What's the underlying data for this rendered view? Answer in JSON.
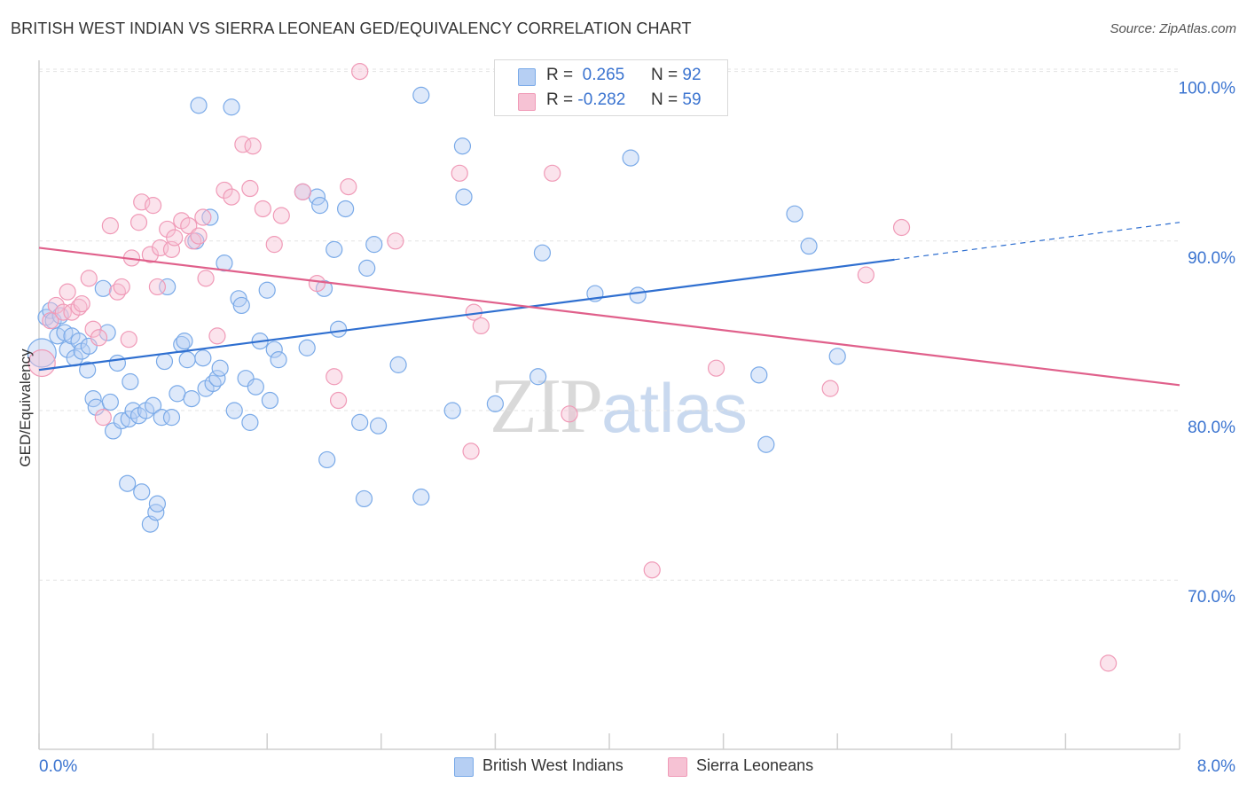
{
  "title": "BRITISH WEST INDIAN VS SIERRA LEONEAN GED/EQUIVALENCY CORRELATION CHART",
  "source": "Source: ZipAtlas.com",
  "watermark": {
    "zip": "ZIP",
    "atlas": "atlas"
  },
  "colors": {
    "blue": "#7aaae8",
    "blue_fill": "#b6cff3",
    "blue_line": "#2f6fd0",
    "pink": "#f09ab7",
    "pink_fill": "#f6c2d4",
    "pink_line": "#e0608b",
    "tick_label": "#3b74d0"
  },
  "legend": {
    "rows": [
      {
        "r_label": "R =",
        "r_value": "0.265",
        "n_label": "N =",
        "n_value": "92"
      },
      {
        "r_label": "R =",
        "r_value": "-0.282",
        "n_label": "N =",
        "n_value": "59"
      }
    ]
  },
  "bottom_legend": [
    "British West Indians",
    "Sierra Leoneans"
  ],
  "chart_data": {
    "type": "scatter",
    "title": "BRITISH WEST INDIAN VS SIERRA LEONEAN GED/EQUIVALENCY CORRELATION CHART",
    "xlabel": "",
    "ylabel": "GED/Equivalency",
    "xlim": [
      0,
      8
    ],
    "ylim": [
      60.5,
      102
    ],
    "x_tick_labels": [
      "0.0%",
      "8.0%"
    ],
    "y_ticks": [
      70,
      80,
      90,
      100
    ],
    "y_tick_labels": [
      "70.0%",
      "80.0%",
      "90.0%",
      "100.0%"
    ],
    "grid": true,
    "legend_position": "top-center",
    "series": [
      {
        "name": "British West Indians",
        "color": "#7aaae8",
        "r": 0.265,
        "n": 92,
        "trend": {
          "x": [
            0,
            6.0
          ],
          "y": [
            82.4,
            88.9
          ],
          "dashed_to": [
            8.0,
            91.1
          ]
        },
        "points": [
          [
            0.02,
            83.4
          ],
          [
            0.05,
            85.5
          ],
          [
            0.08,
            85.9
          ],
          [
            0.1,
            85.3
          ],
          [
            0.13,
            84.4
          ],
          [
            0.15,
            85.6
          ],
          [
            0.18,
            84.6
          ],
          [
            0.2,
            83.6
          ],
          [
            0.23,
            84.4
          ],
          [
            0.25,
            83.1
          ],
          [
            0.28,
            84.1
          ],
          [
            0.3,
            83.5
          ],
          [
            0.34,
            82.4
          ],
          [
            0.35,
            83.8
          ],
          [
            0.38,
            80.7
          ],
          [
            0.4,
            80.2
          ],
          [
            0.45,
            87.2
          ],
          [
            0.48,
            84.6
          ],
          [
            0.5,
            80.5
          ],
          [
            0.52,
            78.8
          ],
          [
            0.55,
            82.8
          ],
          [
            0.58,
            79.4
          ],
          [
            0.62,
            75.7
          ],
          [
            0.63,
            79.5
          ],
          [
            0.64,
            81.7
          ],
          [
            0.66,
            80.0
          ],
          [
            0.7,
            79.7
          ],
          [
            0.72,
            75.2
          ],
          [
            0.75,
            80.0
          ],
          [
            0.78,
            73.3
          ],
          [
            0.8,
            80.3
          ],
          [
            0.82,
            74.0
          ],
          [
            0.83,
            74.5
          ],
          [
            0.86,
            79.6
          ],
          [
            0.88,
            82.9
          ],
          [
            0.9,
            87.3
          ],
          [
            0.93,
            79.6
          ],
          [
            0.97,
            81.0
          ],
          [
            1.0,
            83.9
          ],
          [
            1.02,
            84.1
          ],
          [
            1.04,
            83.0
          ],
          [
            1.07,
            80.7
          ],
          [
            1.1,
            90.0
          ],
          [
            1.12,
            98.0
          ],
          [
            1.15,
            83.1
          ],
          [
            1.17,
            81.3
          ],
          [
            1.2,
            91.4
          ],
          [
            1.22,
            81.6
          ],
          [
            1.25,
            81.9
          ],
          [
            1.27,
            82.5
          ],
          [
            1.3,
            88.7
          ],
          [
            1.35,
            97.9
          ],
          [
            1.37,
            80.0
          ],
          [
            1.4,
            86.6
          ],
          [
            1.42,
            86.2
          ],
          [
            1.45,
            81.9
          ],
          [
            1.48,
            79.3
          ],
          [
            1.52,
            81.4
          ],
          [
            1.55,
            84.1
          ],
          [
            1.6,
            87.1
          ],
          [
            1.62,
            80.6
          ],
          [
            1.65,
            83.6
          ],
          [
            1.68,
            83.0
          ],
          [
            1.85,
            92.9
          ],
          [
            1.88,
            83.7
          ],
          [
            1.95,
            92.6
          ],
          [
            1.97,
            92.1
          ],
          [
            2.0,
            87.2
          ],
          [
            2.02,
            77.1
          ],
          [
            2.07,
            89.5
          ],
          [
            2.1,
            84.8
          ],
          [
            2.15,
            91.9
          ],
          [
            2.25,
            79.3
          ],
          [
            2.28,
            74.8
          ],
          [
            2.3,
            88.4
          ],
          [
            2.35,
            89.8
          ],
          [
            2.38,
            79.1
          ],
          [
            2.52,
            82.7
          ],
          [
            2.68,
            74.9
          ],
          [
            2.68,
            98.6
          ],
          [
            2.9,
            80.0
          ],
          [
            2.97,
            95.6
          ],
          [
            2.98,
            92.6
          ],
          [
            3.2,
            80.4
          ],
          [
            3.5,
            82.0
          ],
          [
            3.53,
            89.3
          ],
          [
            3.8,
            98.9
          ],
          [
            3.9,
            86.9
          ],
          [
            4.15,
            94.9
          ],
          [
            4.2,
            86.8
          ],
          [
            5.05,
            82.1
          ],
          [
            5.1,
            78.0
          ],
          [
            5.3,
            91.6
          ],
          [
            5.4,
            89.7
          ],
          [
            5.6,
            83.2
          ]
        ]
      },
      {
        "name": "Sierra Leoneans",
        "color": "#f09ab7",
        "r": -0.282,
        "n": 59,
        "trend": {
          "x": [
            0,
            8.0
          ],
          "y": [
            89.6,
            81.5
          ]
        },
        "points": [
          [
            0.02,
            82.8
          ],
          [
            0.08,
            85.3
          ],
          [
            0.12,
            86.2
          ],
          [
            0.17,
            85.8
          ],
          [
            0.2,
            87.0
          ],
          [
            0.23,
            85.8
          ],
          [
            0.28,
            86.1
          ],
          [
            0.3,
            86.3
          ],
          [
            0.35,
            87.8
          ],
          [
            0.38,
            84.8
          ],
          [
            0.42,
            84.3
          ],
          [
            0.45,
            79.6
          ],
          [
            0.5,
            90.9
          ],
          [
            0.55,
            87.0
          ],
          [
            0.58,
            87.3
          ],
          [
            0.63,
            84.2
          ],
          [
            0.65,
            89.0
          ],
          [
            0.7,
            91.1
          ],
          [
            0.72,
            92.3
          ],
          [
            0.78,
            89.2
          ],
          [
            0.8,
            92.1
          ],
          [
            0.83,
            87.3
          ],
          [
            0.85,
            89.6
          ],
          [
            0.9,
            90.7
          ],
          [
            0.93,
            89.5
          ],
          [
            0.95,
            90.2
          ],
          [
            1.0,
            91.2
          ],
          [
            1.05,
            90.9
          ],
          [
            1.08,
            90.0
          ],
          [
            1.12,
            90.3
          ],
          [
            1.15,
            91.4
          ],
          [
            1.17,
            87.8
          ],
          [
            1.25,
            84.4
          ],
          [
            1.3,
            93.0
          ],
          [
            1.35,
            92.6
          ],
          [
            1.43,
            95.7
          ],
          [
            1.48,
            93.1
          ],
          [
            1.5,
            95.6
          ],
          [
            1.57,
            91.9
          ],
          [
            1.65,
            89.8
          ],
          [
            1.7,
            91.5
          ],
          [
            1.85,
            92.9
          ],
          [
            1.95,
            87.5
          ],
          [
            2.07,
            82.0
          ],
          [
            2.1,
            80.6
          ],
          [
            2.17,
            93.2
          ],
          [
            2.25,
            100.0
          ],
          [
            2.5,
            90.0
          ],
          [
            2.95,
            94.0
          ],
          [
            3.03,
            77.6
          ],
          [
            3.05,
            85.8
          ],
          [
            3.1,
            85.0
          ],
          [
            3.6,
            94.0
          ],
          [
            3.72,
            79.8
          ],
          [
            4.3,
            70.6
          ],
          [
            4.75,
            82.5
          ],
          [
            5.55,
            81.3
          ],
          [
            5.8,
            88.0
          ],
          [
            6.05,
            90.8
          ],
          [
            7.5,
            65.1
          ]
        ]
      }
    ]
  }
}
